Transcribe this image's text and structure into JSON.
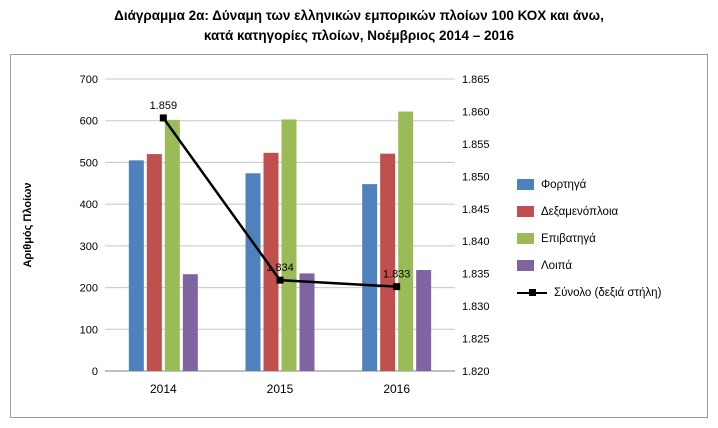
{
  "title": {
    "line1": "Διάγραμμα 2α: Δύναμη των ελληνικών εμπορικών πλοίων 100 ΚΟΧ και άνω,",
    "line2": "κατά κατηγορίες πλοίων, Νοέμβριος 2014 – 2016"
  },
  "chart_data": {
    "type": "bar+line",
    "categories": [
      "2014",
      "2015",
      "2016"
    ],
    "series": [
      {
        "name": "Φορτηγά",
        "type": "bar",
        "color": "#4F81BD",
        "axis": "left",
        "values": [
          505,
          474,
          448
        ]
      },
      {
        "name": "Δεξαμενόπλοια",
        "type": "bar",
        "color": "#C0504D",
        "axis": "left",
        "values": [
          520,
          523,
          521
        ]
      },
      {
        "name": "Επιβατηγά",
        "type": "bar",
        "color": "#9BBB59",
        "axis": "left",
        "values": [
          602,
          603,
          622
        ]
      },
      {
        "name": "Λοιπά",
        "type": "bar",
        "color": "#8064A2",
        "axis": "left",
        "values": [
          232,
          234,
          242
        ]
      },
      {
        "name": "Σύνολο (δεξιά στήλη)",
        "type": "line",
        "color": "#000000",
        "axis": "right",
        "values": [
          1.859,
          1.834,
          1.833
        ],
        "point_labels": [
          "1.859",
          "1.834",
          "1.833"
        ]
      }
    ],
    "left_axis": {
      "label": "Αριθμός Πλοίων",
      "min": 0,
      "max": 700,
      "step": 100,
      "ticks": [
        "0",
        "100",
        "200",
        "300",
        "400",
        "500",
        "600",
        "700"
      ]
    },
    "right_axis": {
      "min": 1.82,
      "max": 1.865,
      "step": 0.005,
      "ticks": [
        "1.820",
        "1.825",
        "1.830",
        "1.835",
        "1.840",
        "1.845",
        "1.850",
        "1.855",
        "1.860",
        "1.865"
      ]
    },
    "grid": true,
    "legend_position": "right"
  },
  "colors": {
    "gridline": "#c8c8c8",
    "axis_line": "#808080",
    "text": "#000000"
  }
}
